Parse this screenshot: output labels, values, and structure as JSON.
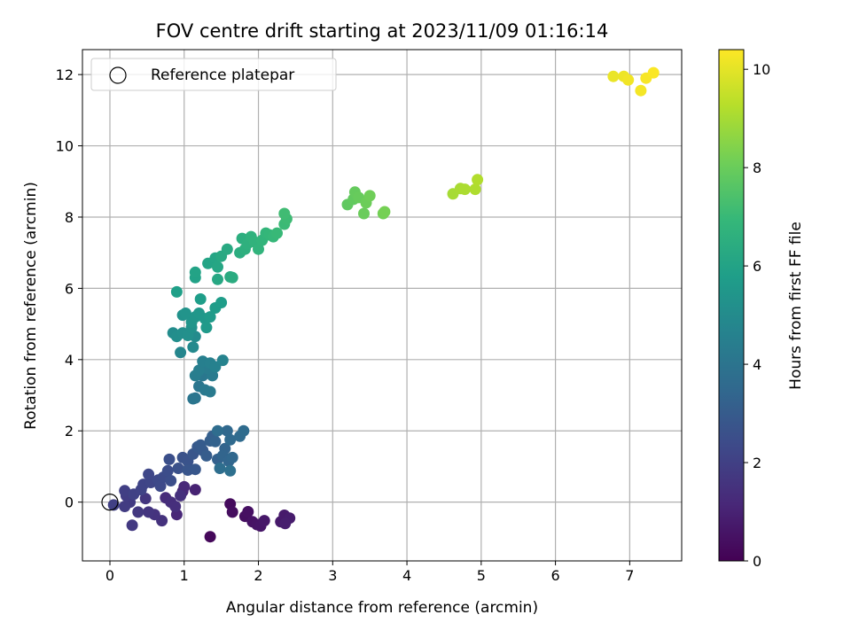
{
  "chart_data": {
    "type": "scatter",
    "title": "FOV centre drift starting at 2023/11/09 01:16:14",
    "xlabel": "Angular distance from reference (arcmin)",
    "ylabel": "Rotation from reference (arcmin)",
    "xlim": [
      -0.37,
      7.7
    ],
    "ylim": [
      -1.65,
      12.7
    ],
    "xticks": [
      0,
      1,
      2,
      3,
      4,
      5,
      6,
      7
    ],
    "yticks": [
      0,
      2,
      4,
      6,
      8,
      10,
      12
    ],
    "grid": true,
    "legend": {
      "placement": "top-left",
      "entries": [
        {
          "label": "Reference platepar",
          "marker": "open-circle"
        }
      ]
    },
    "reference_point": {
      "x": 0,
      "y": 0
    },
    "colorbar": {
      "label": "Hours from first FF file",
      "colormap": "viridis",
      "range": [
        0,
        10.4
      ],
      "ticks": [
        0,
        2,
        4,
        6,
        8,
        10
      ]
    },
    "colormap_stops": [
      "#440154",
      "#482878",
      "#3e4989",
      "#31688e",
      "#26828e",
      "#1f9e89",
      "#35b779",
      "#6ece58",
      "#b5de2b",
      "#fde725"
    ],
    "series": [
      {
        "points": [
          [
            1.35,
            -0.97,
            0.2
          ],
          [
            1.62,
            -0.05,
            0.3
          ],
          [
            1.65,
            -0.28,
            0.35
          ],
          [
            1.82,
            -0.4,
            0.4
          ],
          [
            1.86,
            -0.27,
            0.45
          ],
          [
            1.92,
            -0.55,
            0.5
          ],
          [
            1.98,
            -0.63,
            0.55
          ],
          [
            2.03,
            -0.67,
            0.6
          ],
          [
            2.08,
            -0.52,
            0.65
          ],
          [
            2.3,
            -0.55,
            0.7
          ],
          [
            2.35,
            -0.37,
            0.75
          ],
          [
            2.42,
            -0.45,
            0.8
          ],
          [
            2.36,
            -0.6,
            0.85
          ],
          [
            1.15,
            0.35,
            1.0
          ],
          [
            0.98,
            0.3,
            1.1
          ],
          [
            0.9,
            -0.35,
            1.15
          ],
          [
            1.0,
            0.43,
            1.2
          ],
          [
            0.75,
            0.12,
            1.3
          ],
          [
            0.82,
            0.0,
            1.35
          ],
          [
            0.88,
            -0.12,
            1.4
          ],
          [
            0.95,
            0.18,
            1.45
          ],
          [
            0.7,
            -0.52,
            1.5
          ],
          [
            0.6,
            -0.35,
            1.55
          ],
          [
            0.52,
            -0.28,
            1.6
          ],
          [
            0.48,
            0.1,
            1.65
          ],
          [
            0.38,
            -0.28,
            1.7
          ],
          [
            0.3,
            -0.65,
            1.75
          ],
          [
            0.27,
            0.0,
            1.8
          ],
          [
            0.2,
            -0.12,
            1.85
          ],
          [
            0.22,
            0.18,
            1.9
          ],
          [
            0.2,
            0.32,
            1.95
          ],
          [
            0.05,
            -0.08,
            2.0
          ],
          [
            0.32,
            0.22,
            2.05
          ],
          [
            0.42,
            0.35,
            2.1
          ],
          [
            0.45,
            0.5,
            2.15
          ],
          [
            0.55,
            0.55,
            2.2
          ],
          [
            0.52,
            0.78,
            2.25
          ],
          [
            0.65,
            0.62,
            2.3
          ],
          [
            0.68,
            0.45,
            2.35
          ],
          [
            0.72,
            0.7,
            2.4
          ],
          [
            0.78,
            0.88,
            2.45
          ],
          [
            0.82,
            0.6,
            2.5
          ],
          [
            0.8,
            1.2,
            2.55
          ],
          [
            0.92,
            0.95,
            2.6
          ],
          [
            0.98,
            1.25,
            2.65
          ],
          [
            1.05,
            1.15,
            2.7
          ],
          [
            1.05,
            0.9,
            2.75
          ],
          [
            1.12,
            1.35,
            2.8
          ],
          [
            1.15,
            0.92,
            2.85
          ],
          [
            1.18,
            1.55,
            2.9
          ],
          [
            1.25,
            1.45,
            2.95
          ],
          [
            1.22,
            1.6,
            3.0
          ],
          [
            1.3,
            1.3,
            3.05
          ],
          [
            1.35,
            1.72,
            3.1
          ],
          [
            1.38,
            1.85,
            3.15
          ],
          [
            1.45,
            1.2,
            3.2
          ],
          [
            1.42,
            1.7,
            3.25
          ],
          [
            1.55,
            1.5,
            3.3
          ],
          [
            1.52,
            1.3,
            3.35
          ],
          [
            1.6,
            1.15,
            3.4
          ],
          [
            1.65,
            1.25,
            3.45
          ],
          [
            1.58,
            2.0,
            3.5
          ],
          [
            1.62,
            1.75,
            3.55
          ],
          [
            1.75,
            1.85,
            3.6
          ],
          [
            1.8,
            2.0,
            3.65
          ],
          [
            1.45,
            2.0,
            3.7
          ],
          [
            1.48,
            0.95,
            3.75
          ],
          [
            1.62,
            0.88,
            3.8
          ],
          [
            1.15,
            2.92,
            4.0
          ],
          [
            1.12,
            2.9,
            4.05
          ],
          [
            1.2,
            3.25,
            4.1
          ],
          [
            1.25,
            3.55,
            4.15
          ],
          [
            1.28,
            3.15,
            4.2
          ],
          [
            1.35,
            3.1,
            4.25
          ],
          [
            1.38,
            3.55,
            4.3
          ],
          [
            1.32,
            3.75,
            4.35
          ],
          [
            1.15,
            3.55,
            4.4
          ],
          [
            1.2,
            3.7,
            4.45
          ],
          [
            1.25,
            3.95,
            4.5
          ],
          [
            1.35,
            3.9,
            4.55
          ],
          [
            1.42,
            3.8,
            4.6
          ],
          [
            1.52,
            3.98,
            4.65
          ],
          [
            0.95,
            4.2,
            4.8
          ],
          [
            1.12,
            4.35,
            4.9
          ],
          [
            1.15,
            4.65,
            5.0
          ],
          [
            0.85,
            4.75,
            5.05
          ],
          [
            0.9,
            4.65,
            5.1
          ],
          [
            0.98,
            4.75,
            5.15
          ],
          [
            1.05,
            4.68,
            5.2
          ],
          [
            1.1,
            4.9,
            5.25
          ],
          [
            0.98,
            5.25,
            5.3
          ],
          [
            1.02,
            5.3,
            5.35
          ],
          [
            1.1,
            5.05,
            5.4
          ],
          [
            1.15,
            5.2,
            5.45
          ],
          [
            1.2,
            5.3,
            5.5
          ],
          [
            1.28,
            5.15,
            5.55
          ],
          [
            1.3,
            4.9,
            5.6
          ],
          [
            1.35,
            5.2,
            5.65
          ],
          [
            1.42,
            5.45,
            5.7
          ],
          [
            1.5,
            5.6,
            5.75
          ],
          [
            1.22,
            5.7,
            5.8
          ],
          [
            0.9,
            5.9,
            5.85
          ],
          [
            1.15,
            6.3,
            5.95
          ],
          [
            1.15,
            6.45,
            6.0
          ],
          [
            1.32,
            6.7,
            6.05
          ],
          [
            1.42,
            6.85,
            6.1
          ],
          [
            1.45,
            6.6,
            6.15
          ],
          [
            1.45,
            6.25,
            6.2
          ],
          [
            1.5,
            6.9,
            6.25
          ],
          [
            1.58,
            7.1,
            6.3
          ],
          [
            1.62,
            6.32,
            6.35
          ],
          [
            1.65,
            6.3,
            6.4
          ],
          [
            1.75,
            7.0,
            6.45
          ],
          [
            1.78,
            7.4,
            6.5
          ],
          [
            1.82,
            7.1,
            6.55
          ],
          [
            1.85,
            7.25,
            6.6
          ],
          [
            1.9,
            7.45,
            6.65
          ],
          [
            1.95,
            7.3,
            6.7
          ],
          [
            2.0,
            7.1,
            6.75
          ],
          [
            2.05,
            7.35,
            6.8
          ],
          [
            2.1,
            7.55,
            6.85
          ],
          [
            2.15,
            7.5,
            6.9
          ],
          [
            2.2,
            7.45,
            6.95
          ],
          [
            2.25,
            7.55,
            7.0
          ],
          [
            2.35,
            7.8,
            7.05
          ],
          [
            2.38,
            7.95,
            7.1
          ],
          [
            2.35,
            8.1,
            7.15
          ],
          [
            3.2,
            8.35,
            7.8
          ],
          [
            3.28,
            8.5,
            7.85
          ],
          [
            3.3,
            8.7,
            7.9
          ],
          [
            3.35,
            8.55,
            7.95
          ],
          [
            3.42,
            8.1,
            8.0
          ],
          [
            3.45,
            8.4,
            8.05
          ],
          [
            3.5,
            8.6,
            8.1
          ],
          [
            3.68,
            8.1,
            8.15
          ],
          [
            3.7,
            8.15,
            8.2
          ],
          [
            4.62,
            8.65,
            9.0
          ],
          [
            4.72,
            8.8,
            9.05
          ],
          [
            4.78,
            8.78,
            9.1
          ],
          [
            4.92,
            8.78,
            9.15
          ],
          [
            4.95,
            9.05,
            9.2
          ],
          [
            6.78,
            11.95,
            10.1
          ],
          [
            6.92,
            11.95,
            10.15
          ],
          [
            6.98,
            11.85,
            10.2
          ],
          [
            7.15,
            11.55,
            10.25
          ],
          [
            7.22,
            11.9,
            10.3
          ],
          [
            7.32,
            12.05,
            10.35
          ]
        ]
      }
    ]
  }
}
